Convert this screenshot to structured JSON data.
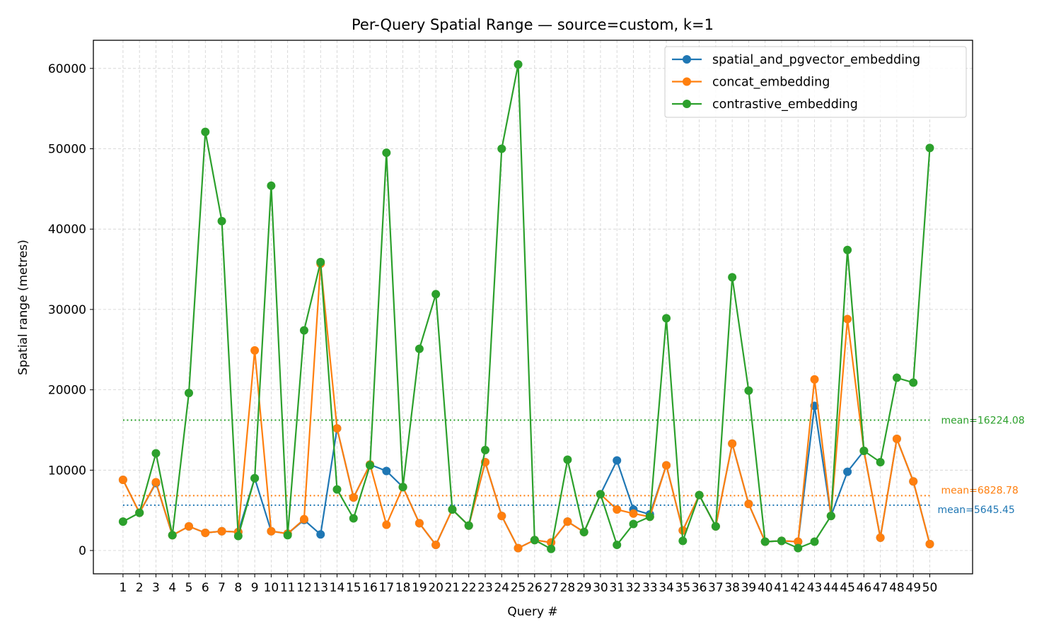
{
  "chart_data": {
    "type": "line",
    "title": "Per-Query Spatial Range — source=custom, k=1",
    "xlabel": "Query #",
    "ylabel": "Spatial range (metres)",
    "x": [
      1,
      2,
      3,
      4,
      5,
      6,
      7,
      8,
      9,
      10,
      11,
      12,
      13,
      14,
      15,
      16,
      17,
      18,
      19,
      20,
      21,
      22,
      23,
      24,
      25,
      26,
      27,
      28,
      29,
      30,
      31,
      32,
      33,
      34,
      35,
      36,
      37,
      38,
      39,
      40,
      41,
      42,
      43,
      44,
      45,
      46,
      47,
      48,
      49,
      50
    ],
    "yticks": [
      0,
      10000,
      20000,
      30000,
      40000,
      50000,
      60000
    ],
    "ylim": [
      -2900,
      63500
    ],
    "xlim": [
      -0.8,
      52.6
    ],
    "grid": true,
    "legend_position": "top-right",
    "series": [
      {
        "name": "spatial_and_pgvector_embedding",
        "color": "#1f77b4",
        "values": [
          8800,
          4700,
          8400,
          1900,
          3000,
          2200,
          2400,
          2300,
          9000,
          2400,
          2100,
          3800,
          2000,
          15200,
          6600,
          10700,
          9900,
          7900,
          3400,
          700,
          5100,
          3100,
          11000,
          4300,
          300,
          1300,
          1000,
          3600,
          2300,
          7000,
          11200,
          5100,
          4500,
          10600,
          2500,
          6900,
          3000,
          13300,
          5800,
          1100,
          1200,
          1100,
          18000,
          4300,
          9800,
          12400,
          1600,
          13900,
          8600,
          800
        ],
        "mean": 5645.45,
        "mean_label": "mean=5645.45"
      },
      {
        "name": "concat_embedding",
        "color": "#ff7f0e",
        "values": [
          8800,
          4700,
          8500,
          1900,
          3000,
          2200,
          2400,
          2300,
          24900,
          2400,
          2100,
          3900,
          35700,
          15200,
          6600,
          10700,
          3200,
          7900,
          3400,
          700,
          5100,
          3100,
          11000,
          4300,
          300,
          1300,
          1000,
          3600,
          2300,
          7000,
          5100,
          4600,
          4200,
          10600,
          2500,
          6900,
          3000,
          13300,
          5800,
          1100,
          1200,
          1100,
          21300,
          4300,
          28800,
          12400,
          1600,
          13900,
          8600,
          800
        ],
        "mean": 6828.78,
        "mean_label": "mean=6828.78"
      },
      {
        "name": "contrastive_embedding",
        "color": "#2ca02c",
        "values": [
          3600,
          4700,
          12100,
          1900,
          19600,
          52100,
          41000,
          1800,
          9000,
          45400,
          1900,
          27400,
          35900,
          7600,
          4000,
          10600,
          49500,
          7900,
          25100,
          31900,
          5100,
          3100,
          12500,
          50000,
          60500,
          1300,
          200,
          11300,
          2300,
          7000,
          700,
          3300,
          4200,
          28900,
          1200,
          6900,
          3000,
          34000,
          19900,
          1100,
          1200,
          300,
          1100,
          4300,
          37400,
          12400,
          11000,
          21500,
          20900,
          50100
        ],
        "mean": 16224.08,
        "mean_label": "mean=16224.08"
      }
    ]
  }
}
